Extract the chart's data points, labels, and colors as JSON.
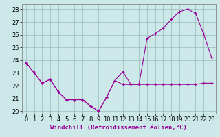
{
  "xlabel": "Windchill (Refroidissement éolien,°C)",
  "background_color": "#cce8e8",
  "line_color": "#990099",
  "grid_color": "#99bbbb",
  "hours": [
    0,
    1,
    2,
    3,
    4,
    5,
    6,
    7,
    8,
    9,
    10,
    11,
    12,
    13,
    14,
    15,
    16,
    17,
    18,
    19,
    20,
    21,
    22,
    23
  ],
  "temp_line": [
    23.8,
    23.0,
    22.2,
    22.5,
    21.5,
    20.9,
    20.9,
    20.9,
    20.4,
    20.0,
    21.1,
    22.4,
    23.1,
    22.1,
    22.1,
    25.7,
    26.1,
    26.5,
    27.2,
    27.8,
    28.0,
    27.7,
    26.1,
    24.2
  ],
  "windchill_line": [
    23.8,
    23.0,
    22.2,
    22.5,
    21.5,
    20.9,
    20.9,
    20.9,
    20.4,
    20.0,
    21.1,
    22.4,
    22.1,
    22.1,
    22.1,
    22.1,
    22.1,
    22.1,
    22.1,
    22.1,
    22.1,
    22.1,
    22.2,
    22.2
  ],
  "ylim": [
    19.8,
    28.4
  ],
  "xlim": [
    -0.5,
    23.5
  ],
  "xtick_labels": [
    "0",
    "1",
    "2",
    "3",
    "4",
    "5",
    "6",
    "7",
    "8",
    "9",
    "10",
    "11",
    "12",
    "13",
    "14",
    "15",
    "16",
    "17",
    "18",
    "19",
    "20",
    "21",
    "22",
    "23"
  ],
  "ytick_values": [
    20,
    21,
    22,
    23,
    24,
    25,
    26,
    27,
    28
  ],
  "fontsize_xlabel": 6.5,
  "fontsize_tick": 6.0
}
